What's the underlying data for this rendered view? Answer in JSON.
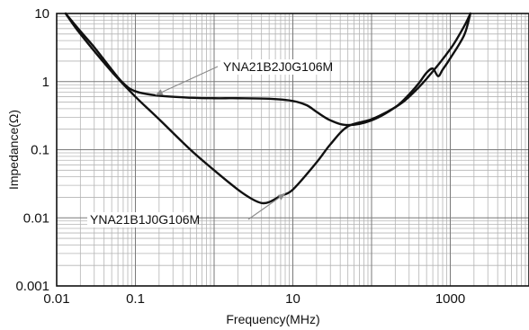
{
  "chart_data": {
    "type": "line",
    "xlabel": "Frequency(MHz)",
    "ylabel": "Impedance(Ω)",
    "xscale": "log",
    "yscale": "log",
    "xlim": [
      0.01,
      10000
    ],
    "ylim": [
      0.001,
      10
    ],
    "grid": true,
    "legend": "none",
    "x_ticks": [
      {
        "value": 0.01,
        "label": "0.01"
      },
      {
        "value": 0.1,
        "label": "0.1"
      },
      {
        "value": 10,
        "label": "10"
      },
      {
        "value": 1000,
        "label": "1000"
      }
    ],
    "y_ticks": [
      {
        "value": 10,
        "label": "10"
      },
      {
        "value": 1,
        "label": "1"
      },
      {
        "value": 0.1,
        "label": "0.1"
      },
      {
        "value": 0.01,
        "label": "0.01"
      },
      {
        "value": 0.001,
        "label": "0.001"
      }
    ],
    "series": [
      {
        "name": "YNA21B2J0G106M",
        "color": "#111111",
        "x": [
          0.013,
          0.02,
          0.03,
          0.05,
          0.07,
          0.1,
          0.2,
          0.5,
          1,
          2,
          5,
          10,
          15,
          20,
          30,
          50,
          100,
          200,
          300,
          400,
          500,
          600,
          700,
          800,
          1000,
          1500,
          1800
        ],
        "y": [
          10,
          5.5,
          3.2,
          1.5,
          0.95,
          0.72,
          0.62,
          0.58,
          0.57,
          0.57,
          0.56,
          0.52,
          0.45,
          0.36,
          0.27,
          0.23,
          0.27,
          0.42,
          0.65,
          0.95,
          1.35,
          1.55,
          1.2,
          1.5,
          2.2,
          4.8,
          10
        ]
      },
      {
        "name": "YNA21B1J0G106M",
        "color": "#111111",
        "x": [
          0.013,
          0.02,
          0.05,
          0.1,
          0.2,
          0.5,
          1,
          2,
          3,
          4,
          5,
          7,
          10,
          20,
          30,
          50,
          100,
          200,
          300,
          500,
          1000,
          1500,
          1800
        ],
        "y": [
          10,
          5.0,
          1.4,
          0.6,
          0.28,
          0.1,
          0.05,
          0.026,
          0.019,
          0.0165,
          0.017,
          0.021,
          0.026,
          0.065,
          0.12,
          0.22,
          0.28,
          0.42,
          0.6,
          1.1,
          3.0,
          6.5,
          10
        ]
      }
    ],
    "annotations": [
      {
        "text": "YNA21B2J0G106M",
        "series": "YNA21B2J0G106M"
      },
      {
        "text": "YNA21B1J0G106M",
        "series": "YNA21B1J0G106M"
      }
    ]
  }
}
